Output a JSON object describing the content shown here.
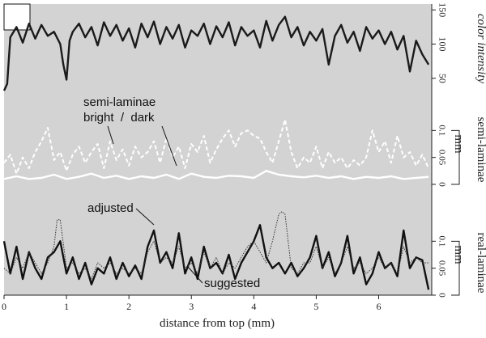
{
  "chart_data": {
    "type": "line",
    "xlabel": "distance from top (mm)",
    "xlim": [
      0,
      6.85
    ],
    "xticks": [
      0,
      1,
      2,
      3,
      4,
      5,
      6
    ],
    "background": "#d3d3d3",
    "panels": [
      {
        "id": "color",
        "ylabel": "color intensity",
        "ylabel_style": "italic",
        "ylim": [
          25,
          155
        ],
        "yticks": [
          50,
          100,
          150
        ],
        "series": [
          {
            "name": "",
            "color": "#1a1a1a",
            "style": "solid",
            "x": [
              0,
              0.05,
              0.1,
              0.2,
              0.3,
              0.4,
              0.5,
              0.6,
              0.7,
              0.8,
              0.9,
              0.95,
              1.0,
              1.05,
              1.1,
              1.2,
              1.3,
              1.4,
              1.5,
              1.6,
              1.7,
              1.8,
              1.9,
              2.0,
              2.1,
              2.2,
              2.3,
              2.4,
              2.5,
              2.6,
              2.7,
              2.8,
              2.9,
              3.0,
              3.1,
              3.2,
              3.3,
              3.4,
              3.5,
              3.6,
              3.7,
              3.8,
              3.9,
              4.0,
              4.1,
              4.2,
              4.3,
              4.4,
              4.5,
              4.6,
              4.7,
              4.8,
              4.9,
              5.0,
              5.1,
              5.2,
              5.3,
              5.4,
              5.5,
              5.6,
              5.7,
              5.8,
              5.9,
              6.0,
              6.1,
              6.2,
              6.3,
              6.4,
              6.5,
              6.6,
              6.7,
              6.8
            ],
            "values": [
              32,
              42,
              110,
              125,
              102,
              130,
              108,
              128,
              112,
              118,
              100,
              70,
              48,
              105,
              118,
              130,
              110,
              125,
              98,
              132,
              112,
              128,
              105,
              123,
              95,
              130,
              110,
              133,
              100,
              125,
              108,
              128,
              95,
              120,
              112,
              130,
              100,
              126,
              110,
              132,
              98,
              125,
              112,
              120,
              95,
              134,
              105,
              128,
              140,
              110,
              125,
              98,
              118,
              105,
              122,
              70,
              112,
              128,
              102,
              118,
              90,
              125,
              108,
              120,
              100,
              118,
              92,
              112,
              60,
              105,
              85,
              70
            ]
          }
        ]
      },
      {
        "id": "semi",
        "ylabel": "semi-laminae",
        "ylim": [
          0,
          0.15
        ],
        "yticks": [
          0,
          0.05,
          0.1
        ],
        "unit": "mm",
        "series": [
          {
            "name": "bright",
            "color": "#ffffff",
            "style": "dashed",
            "x": [
              0,
              0.1,
              0.2,
              0.3,
              0.4,
              0.5,
              0.6,
              0.7,
              0.8,
              0.9,
              1.0,
              1.1,
              1.2,
              1.3,
              1.4,
              1.5,
              1.6,
              1.7,
              1.8,
              1.9,
              2.0,
              2.1,
              2.2,
              2.3,
              2.4,
              2.5,
              2.6,
              2.7,
              2.8,
              2.9,
              3.0,
              3.1,
              3.2,
              3.3,
              3.4,
              3.5,
              3.6,
              3.7,
              3.8,
              3.9,
              4.0,
              4.1,
              4.2,
              4.3,
              4.4,
              4.5,
              4.6,
              4.7,
              4.8,
              4.9,
              5.0,
              5.1,
              5.2,
              5.3,
              5.4,
              5.5,
              5.6,
              5.7,
              5.8,
              5.9,
              6.0,
              6.1,
              6.2,
              6.3,
              6.4,
              6.5,
              6.6,
              6.7,
              6.8
            ],
            "values": [
              0.04,
              0.055,
              0.02,
              0.05,
              0.03,
              0.06,
              0.08,
              0.105,
              0.045,
              0.06,
              0.025,
              0.055,
              0.07,
              0.04,
              0.06,
              0.075,
              0.03,
              0.08,
              0.045,
              0.065,
              0.035,
              0.07,
              0.05,
              0.06,
              0.08,
              0.04,
              0.085,
              0.05,
              0.07,
              0.03,
              0.075,
              0.06,
              0.09,
              0.04,
              0.065,
              0.085,
              0.1,
              0.07,
              0.095,
              0.1,
              0.09,
              0.085,
              0.06,
              0.04,
              0.08,
              0.12,
              0.06,
              0.03,
              0.05,
              0.04,
              0.07,
              0.03,
              0.06,
              0.04,
              0.05,
              0.03,
              0.045,
              0.035,
              0.05,
              0.1,
              0.06,
              0.08,
              0.04,
              0.09,
              0.05,
              0.06,
              0.035,
              0.055,
              0.03
            ]
          },
          {
            "name": "dark",
            "color": "#ffffff",
            "style": "solid",
            "x": [
              0,
              0.2,
              0.4,
              0.6,
              0.8,
              1.0,
              1.2,
              1.4,
              1.6,
              1.8,
              2.0,
              2.2,
              2.4,
              2.6,
              2.8,
              3.0,
              3.2,
              3.4,
              3.6,
              3.8,
              4.0,
              4.2,
              4.4,
              4.6,
              4.8,
              5.0,
              5.2,
              5.4,
              5.6,
              5.8,
              6.0,
              6.2,
              6.4,
              6.6,
              6.8
            ],
            "values": [
              0.01,
              0.015,
              0.01,
              0.012,
              0.018,
              0.01,
              0.014,
              0.02,
              0.012,
              0.016,
              0.01,
              0.015,
              0.012,
              0.018,
              0.01,
              0.02,
              0.014,
              0.012,
              0.016,
              0.015,
              0.012,
              0.025,
              0.018,
              0.015,
              0.013,
              0.016,
              0.012,
              0.015,
              0.01,
              0.014,
              0.012,
              0.015,
              0.01,
              0.012,
              0.014
            ]
          }
        ],
        "annotations": [
          "semi-laminae",
          "bright  /  dark"
        ]
      },
      {
        "id": "real",
        "ylabel": "real-laminae",
        "ylim": [
          0,
          0.15
        ],
        "yticks": [
          0,
          0.05,
          0.1
        ],
        "unit": "mm",
        "series": [
          {
            "name": "adjusted",
            "color": "#111111",
            "style": "solid",
            "x": [
              0,
              0.1,
              0.2,
              0.3,
              0.4,
              0.5,
              0.6,
              0.7,
              0.8,
              0.9,
              1.0,
              1.1,
              1.2,
              1.3,
              1.4,
              1.5,
              1.6,
              1.7,
              1.8,
              1.9,
              2.0,
              2.1,
              2.2,
              2.3,
              2.4,
              2.5,
              2.6,
              2.7,
              2.8,
              2.9,
              3.0,
              3.1,
              3.2,
              3.3,
              3.4,
              3.5,
              3.6,
              3.7,
              3.8,
              3.9,
              4.0,
              4.1,
              4.2,
              4.3,
              4.4,
              4.5,
              4.6,
              4.7,
              4.8,
              4.9,
              5.0,
              5.1,
              5.2,
              5.3,
              5.4,
              5.5,
              5.6,
              5.7,
              5.8,
              5.9,
              6.0,
              6.1,
              6.2,
              6.3,
              6.4,
              6.5,
              6.6,
              6.7,
              6.8
            ],
            "values": [
              0.1,
              0.04,
              0.09,
              0.03,
              0.08,
              0.05,
              0.03,
              0.07,
              0.08,
              0.1,
              0.04,
              0.07,
              0.03,
              0.06,
              0.02,
              0.05,
              0.04,
              0.07,
              0.03,
              0.06,
              0.035,
              0.055,
              0.03,
              0.09,
              0.12,
              0.06,
              0.08,
              0.05,
              0.115,
              0.04,
              0.07,
              0.03,
              0.09,
              0.05,
              0.06,
              0.04,
              0.075,
              0.03,
              0.06,
              0.08,
              0.1,
              0.13,
              0.07,
              0.05,
              0.06,
              0.04,
              0.06,
              0.035,
              0.05,
              0.07,
              0.11,
              0.05,
              0.08,
              0.035,
              0.06,
              0.11,
              0.04,
              0.07,
              0.02,
              0.04,
              0.08,
              0.05,
              0.06,
              0.035,
              0.12,
              0.05,
              0.07,
              0.065,
              0.01
            ]
          },
          {
            "name": "suggested",
            "color": "#333333",
            "style": "dotted",
            "x": [
              0,
              0.1,
              0.2,
              0.3,
              0.4,
              0.5,
              0.6,
              0.7,
              0.8,
              0.85,
              0.9,
              1.0,
              1.1,
              1.2,
              1.3,
              1.4,
              1.5,
              1.6,
              1.7,
              1.8,
              1.9,
              2.0,
              2.1,
              2.2,
              2.3,
              2.4,
              2.5,
              2.6,
              2.7,
              2.8,
              2.9,
              3.0,
              3.1,
              3.2,
              3.3,
              3.4,
              3.5,
              3.6,
              3.7,
              3.8,
              3.9,
              4.0,
              4.1,
              4.2,
              4.3,
              4.4,
              4.45,
              4.5,
              4.6,
              4.7,
              4.8,
              4.9,
              5.0,
              5.1,
              5.2,
              5.3,
              5.4,
              5.5,
              5.6,
              5.7,
              5.8,
              5.9,
              6.0,
              6.1,
              6.2,
              6.3,
              6.4,
              6.5,
              6.6,
              6.7,
              6.8
            ],
            "values": [
              0.05,
              0.04,
              0.07,
              0.05,
              0.08,
              0.06,
              0.04,
              0.06,
              0.09,
              0.14,
              0.14,
              0.05,
              0.06,
              0.04,
              0.05,
              0.03,
              0.06,
              0.05,
              0.06,
              0.04,
              0.05,
              0.04,
              0.05,
              0.04,
              0.08,
              0.1,
              0.06,
              0.07,
              0.06,
              0.09,
              0.05,
              0.06,
              0.04,
              0.08,
              0.05,
              0.07,
              0.04,
              0.06,
              0.05,
              0.07,
              0.09,
              0.1,
              0.08,
              0.06,
              0.1,
              0.15,
              0.155,
              0.15,
              0.05,
              0.04,
              0.06,
              0.06,
              0.09,
              0.05,
              0.07,
              0.04,
              0.06,
              0.09,
              0.05,
              0.06,
              0.04,
              0.05,
              0.07,
              0.05,
              0.06,
              0.04,
              0.09,
              0.06,
              0.07,
              0.06,
              0.06
            ]
          }
        ]
      }
    ]
  }
}
